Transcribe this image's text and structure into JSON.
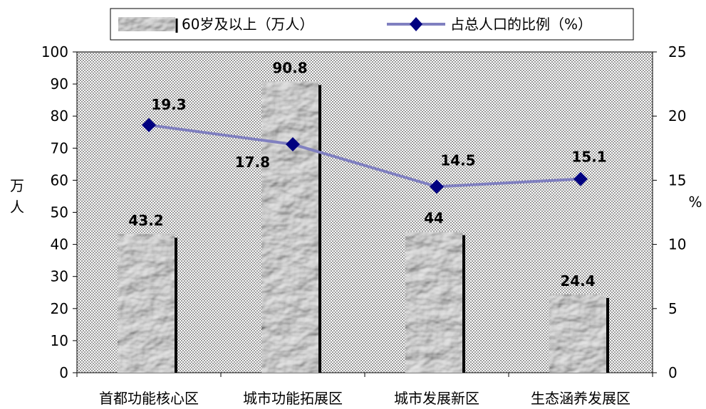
{
  "chart_data": {
    "type": "bar+line",
    "categories": [
      "首都功能核心区",
      "城市功能拓展区",
      "城市发展新区",
      "生态涵养发展区"
    ],
    "series": [
      {
        "name": "60岁及以上（万人）",
        "type": "bar",
        "axis": "left",
        "values": [
          43.2,
          90.8,
          44,
          24.4
        ],
        "labels": [
          "43.2",
          "90.8",
          "44",
          "24.4"
        ]
      },
      {
        "name": "占总人口的比例（%）",
        "type": "line",
        "axis": "right",
        "values": [
          19.3,
          17.8,
          14.5,
          15.1
        ],
        "labels": [
          "19.3",
          "17.8",
          "14.5",
          "15.1"
        ],
        "color": "#8080c0",
        "marker_color": "#000080"
      }
    ],
    "left_axis": {
      "label": "万人",
      "range": [
        0,
        100
      ],
      "ticks": [
        "0",
        "10",
        "20",
        "30",
        "40",
        "50",
        "60",
        "70",
        "80",
        "90",
        "100"
      ]
    },
    "right_axis": {
      "label": "%",
      "range": [
        0,
        25
      ],
      "ticks": [
        "0",
        "5",
        "10",
        "15",
        "20",
        "25"
      ]
    },
    "legend_position": "top",
    "grid": false
  }
}
